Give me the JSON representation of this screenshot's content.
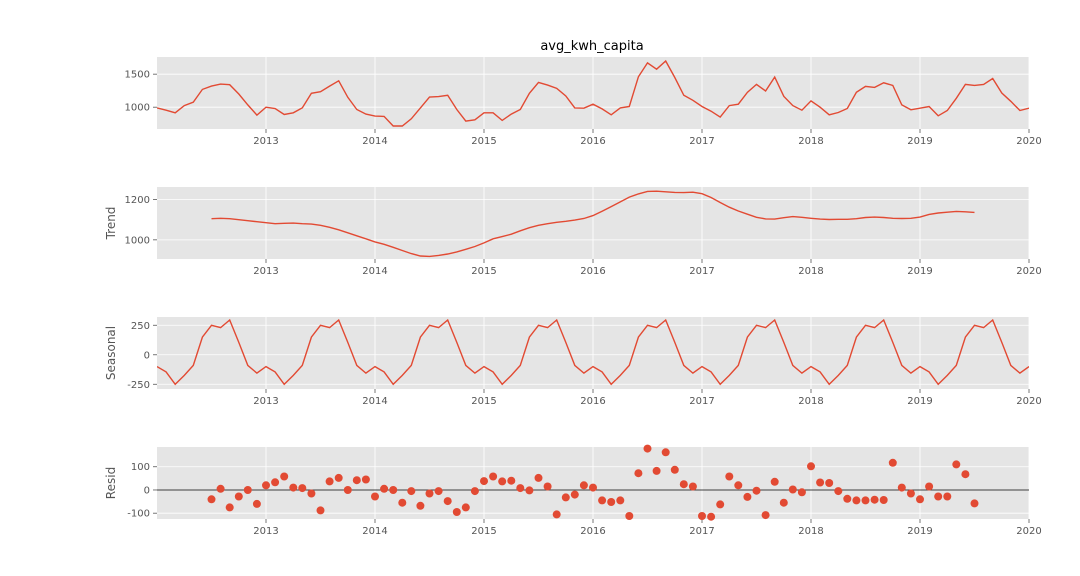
{
  "chart_data": [
    {
      "type": "line",
      "title": "avg_kwh_capita",
      "ylabel": "",
      "xlim": [
        "2012-01",
        "2020-01"
      ],
      "ylim": [
        670,
        1760
      ],
      "x_ticks": [
        "2013",
        "2014",
        "2015",
        "2016",
        "2017",
        "2018",
        "2019",
        "2020"
      ],
      "y_ticks": [
        1000,
        1500
      ],
      "x": [
        "2012-01",
        "2012-02",
        "2012-03",
        "2012-04",
        "2012-05",
        "2012-06",
        "2012-07",
        "2012-08",
        "2012-09",
        "2012-10",
        "2012-11",
        "2012-12",
        "2013-01",
        "2013-02",
        "2013-03",
        "2013-04",
        "2013-05",
        "2013-06",
        "2013-07",
        "2013-08",
        "2013-09",
        "2013-10",
        "2013-11",
        "2013-12",
        "2014-01",
        "2014-02",
        "2014-03",
        "2014-04",
        "2014-05",
        "2014-06",
        "2014-07",
        "2014-08",
        "2014-09",
        "2014-10",
        "2014-11",
        "2014-12",
        "2015-01",
        "2015-02",
        "2015-03",
        "2015-04",
        "2015-05",
        "2015-06",
        "2015-07",
        "2015-08",
        "2015-09",
        "2015-10",
        "2015-11",
        "2015-12",
        "2016-01",
        "2016-02",
        "2016-03",
        "2016-04",
        "2016-05",
        "2016-06",
        "2016-07",
        "2016-08",
        "2016-09",
        "2016-10",
        "2016-11",
        "2016-12",
        "2017-01",
        "2017-02",
        "2017-03",
        "2017-04",
        "2017-05",
        "2017-06",
        "2017-07",
        "2017-08",
        "2017-09",
        "2017-10",
        "2017-11",
        "2017-12",
        "2018-01",
        "2018-02",
        "2018-03",
        "2018-04",
        "2018-05",
        "2018-06",
        "2018-07",
        "2018-08",
        "2018-09",
        "2018-10",
        "2018-11",
        "2018-12",
        "2019-01",
        "2019-02",
        "2019-03",
        "2019-04",
        "2019-05",
        "2019-06",
        "2019-07",
        "2019-08",
        "2019-09",
        "2019-10",
        "2019-11",
        "2019-12",
        "2020-01"
      ],
      "values": [
        990,
        955,
        915,
        1025,
        1075,
        1270,
        1320,
        1350,
        1340,
        1200,
        1035,
        880,
        1000,
        980,
        890,
        915,
        990,
        1210,
        1235,
        1320,
        1400,
        1150,
        965,
        895,
        865,
        860,
        715,
        715,
        825,
        990,
        1155,
        1160,
        1180,
        965,
        790,
        810,
        915,
        915,
        800,
        895,
        965,
        1210,
        1375,
        1335,
        1285,
        1170,
        990,
        985,
        1045,
        975,
        885,
        990,
        1010,
        1460,
        1670,
        1575,
        1700,
        1450,
        1180,
        1105,
        1010,
        940,
        850,
        1025,
        1045,
        1225,
        1345,
        1245,
        1455,
        1165,
        1025,
        955,
        1095,
        1000,
        885,
        920,
        980,
        1225,
        1315,
        1300,
        1370,
        1330,
        1035,
        960,
        985,
        1010,
        870,
        950,
        1135,
        1345,
        1330,
        1345,
        1435,
        1215,
        1090,
        950,
        985
      ]
    },
    {
      "type": "line",
      "title": "",
      "ylabel": "Trend",
      "xlim": [
        "2012-01",
        "2020-01"
      ],
      "ylim": [
        905,
        1262
      ],
      "x_ticks": [
        "2013",
        "2014",
        "2015",
        "2016",
        "2017",
        "2018",
        "2019",
        "2020"
      ],
      "y_ticks": [
        1000,
        1200
      ],
      "x": [
        "2012-07",
        "2012-08",
        "2012-09",
        "2012-10",
        "2012-11",
        "2012-12",
        "2013-01",
        "2013-02",
        "2013-03",
        "2013-04",
        "2013-05",
        "2013-06",
        "2013-07",
        "2013-08",
        "2013-09",
        "2013-10",
        "2013-11",
        "2013-12",
        "2014-01",
        "2014-02",
        "2014-03",
        "2014-04",
        "2014-05",
        "2014-06",
        "2014-07",
        "2014-08",
        "2014-09",
        "2014-10",
        "2014-11",
        "2014-12",
        "2015-01",
        "2015-02",
        "2015-03",
        "2015-04",
        "2015-05",
        "2015-06",
        "2015-07",
        "2015-08",
        "2015-09",
        "2015-10",
        "2015-11",
        "2015-12",
        "2016-01",
        "2016-02",
        "2016-03",
        "2016-04",
        "2016-05",
        "2016-06",
        "2016-07",
        "2016-08",
        "2016-09",
        "2016-10",
        "2016-11",
        "2016-12",
        "2017-01",
        "2017-02",
        "2017-03",
        "2017-04",
        "2017-05",
        "2017-06",
        "2017-07",
        "2017-08",
        "2017-09",
        "2017-10",
        "2017-11",
        "2017-12",
        "2018-01",
        "2018-02",
        "2018-03",
        "2018-04",
        "2018-05",
        "2018-06",
        "2018-07",
        "2018-08",
        "2018-09",
        "2018-10",
        "2018-11",
        "2018-12",
        "2019-01",
        "2019-02",
        "2019-03",
        "2019-04",
        "2019-05",
        "2019-06",
        "2019-07"
      ],
      "values": [
        1105,
        1107,
        1105,
        1100,
        1095,
        1090,
        1085,
        1080,
        1082,
        1083,
        1080,
        1078,
        1072,
        1062,
        1050,
        1035,
        1020,
        1005,
        990,
        978,
        963,
        947,
        932,
        920,
        918,
        923,
        930,
        940,
        953,
        967,
        985,
        1005,
        1016,
        1028,
        1045,
        1060,
        1072,
        1080,
        1087,
        1092,
        1098,
        1106,
        1120,
        1142,
        1165,
        1188,
        1212,
        1228,
        1240,
        1241,
        1238,
        1235,
        1234,
        1236,
        1229,
        1210,
        1185,
        1162,
        1143,
        1127,
        1112,
        1104,
        1103,
        1110,
        1115,
        1112,
        1107,
        1103,
        1101,
        1102,
        1102,
        1105,
        1111,
        1113,
        1111,
        1107,
        1106,
        1107,
        1113,
        1126,
        1133,
        1137,
        1141,
        1139,
        1136
      ]
    },
    {
      "type": "line",
      "title": "",
      "ylabel": "Seasonal",
      "xlim": [
        "2012-01",
        "2020-01"
      ],
      "ylim": [
        -290,
        320
      ],
      "x_ticks": [
        "2013",
        "2014",
        "2015",
        "2016",
        "2017",
        "2018",
        "2019",
        "2020"
      ],
      "y_ticks": [
        -250,
        0,
        250
      ],
      "x": [
        "2012-01",
        "2012-02",
        "2012-03",
        "2012-04",
        "2012-05",
        "2012-06",
        "2012-07",
        "2012-08",
        "2012-09",
        "2012-10",
        "2012-11",
        "2012-12",
        "2013-01",
        "2013-02",
        "2013-03",
        "2013-04",
        "2013-05",
        "2013-06",
        "2013-07",
        "2013-08",
        "2013-09",
        "2013-10",
        "2013-11",
        "2013-12",
        "2014-01",
        "2014-02",
        "2014-03",
        "2014-04",
        "2014-05",
        "2014-06",
        "2014-07",
        "2014-08",
        "2014-09",
        "2014-10",
        "2014-11",
        "2014-12",
        "2015-01",
        "2015-02",
        "2015-03",
        "2015-04",
        "2015-05",
        "2015-06",
        "2015-07",
        "2015-08",
        "2015-09",
        "2015-10",
        "2015-11",
        "2015-12",
        "2016-01",
        "2016-02",
        "2016-03",
        "2016-04",
        "2016-05",
        "2016-06",
        "2016-07",
        "2016-08",
        "2016-09",
        "2016-10",
        "2016-11",
        "2016-12",
        "2017-01",
        "2017-02",
        "2017-03",
        "2017-04",
        "2017-05",
        "2017-06",
        "2017-07",
        "2017-08",
        "2017-09",
        "2017-10",
        "2017-11",
        "2017-12",
        "2018-01",
        "2018-02",
        "2018-03",
        "2018-04",
        "2018-05",
        "2018-06",
        "2018-07",
        "2018-08",
        "2018-09",
        "2018-10",
        "2018-11",
        "2018-12",
        "2019-01",
        "2019-02",
        "2019-03",
        "2019-04",
        "2019-05",
        "2019-06",
        "2019-07",
        "2019-08",
        "2019-09",
        "2019-10",
        "2019-11",
        "2019-12",
        "2020-01"
      ],
      "values": [
        -100,
        -145,
        -250,
        -175,
        -90,
        150,
        250,
        230,
        295,
        105,
        -90,
        -155,
        -100,
        -145,
        -250,
        -175,
        -90,
        150,
        250,
        230,
        295,
        105,
        -90,
        -155,
        -100,
        -145,
        -250,
        -175,
        -90,
        150,
        250,
        230,
        295,
        105,
        -90,
        -155,
        -100,
        -145,
        -250,
        -175,
        -90,
        150,
        250,
        230,
        295,
        105,
        -90,
        -155,
        -100,
        -145,
        -250,
        -175,
        -90,
        150,
        250,
        230,
        295,
        105,
        -90,
        -155,
        -100,
        -145,
        -250,
        -175,
        -90,
        150,
        250,
        230,
        295,
        105,
        -90,
        -155,
        -100,
        -145,
        -250,
        -175,
        -90,
        150,
        250,
        230,
        295,
        105,
        -90,
        -155,
        -100,
        -145,
        -250,
        -175,
        -90,
        150,
        250,
        230,
        295,
        105,
        -90,
        -155,
        -100
      ]
    },
    {
      "type": "scatter",
      "title": "",
      "ylabel": "Resid",
      "xlim": [
        "2012-01",
        "2020-01"
      ],
      "ylim": [
        -125,
        185
      ],
      "x_ticks": [
        "2013",
        "2014",
        "2015",
        "2016",
        "2017",
        "2018",
        "2019",
        "2020"
      ],
      "y_ticks": [
        -100,
        0,
        100
      ],
      "reference_line": 0,
      "x": [
        "2012-07",
        "2012-08",
        "2012-09",
        "2012-10",
        "2012-11",
        "2012-12",
        "2013-01",
        "2013-02",
        "2013-03",
        "2013-04",
        "2013-05",
        "2013-06",
        "2013-07",
        "2013-08",
        "2013-09",
        "2013-10",
        "2013-11",
        "2013-12",
        "2014-01",
        "2014-02",
        "2014-03",
        "2014-04",
        "2014-05",
        "2014-06",
        "2014-07",
        "2014-08",
        "2014-09",
        "2014-10",
        "2014-11",
        "2014-12",
        "2015-01",
        "2015-02",
        "2015-03",
        "2015-04",
        "2015-05",
        "2015-06",
        "2015-07",
        "2015-08",
        "2015-09",
        "2015-10",
        "2015-11",
        "2015-12",
        "2016-01",
        "2016-02",
        "2016-03",
        "2016-04",
        "2016-05",
        "2016-06",
        "2016-07",
        "2016-08",
        "2016-09",
        "2016-10",
        "2016-11",
        "2016-12",
        "2017-01",
        "2017-02",
        "2017-03",
        "2017-04",
        "2017-05",
        "2017-06",
        "2017-07",
        "2017-08",
        "2017-09",
        "2017-10",
        "2017-11",
        "2017-12",
        "2018-01",
        "2018-02",
        "2018-03",
        "2018-04",
        "2018-05",
        "2018-06",
        "2018-07",
        "2018-08",
        "2018-09",
        "2018-10",
        "2018-11",
        "2018-12",
        "2019-01",
        "2019-02",
        "2019-03",
        "2019-04",
        "2019-05",
        "2019-06",
        "2019-07"
      ],
      "values": [
        -40,
        5,
        -75,
        -28,
        0,
        -60,
        20,
        33,
        58,
        10,
        8,
        -15,
        -88,
        37,
        52,
        0,
        42,
        45,
        -28,
        5,
        0,
        -55,
        -5,
        -68,
        -15,
        -5,
        -48,
        -95,
        -75,
        -5,
        38,
        58,
        37,
        40,
        8,
        -2,
        52,
        15,
        -105,
        -32,
        -20,
        20,
        10,
        -45,
        -52,
        -45,
        -112,
        72,
        178,
        82,
        162,
        87,
        25,
        15,
        -112,
        -115,
        -62,
        58,
        20,
        -30,
        -3,
        -108,
        35,
        -55,
        2,
        -10,
        102,
        32,
        30,
        -5,
        -38,
        -45,
        -45,
        -42,
        -43,
        117,
        10,
        -15,
        -40,
        15,
        -28,
        -28,
        110,
        68,
        -58
      ]
    }
  ]
}
